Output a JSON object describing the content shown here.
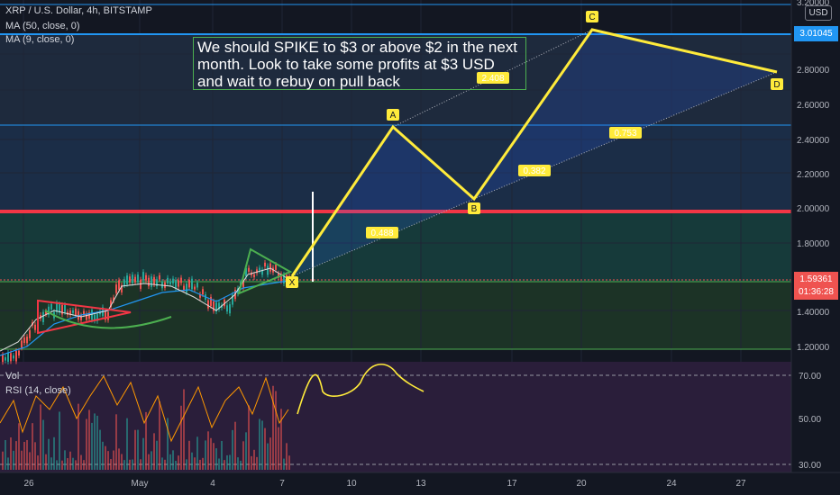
{
  "legend": {
    "symbol": "XRP / U.S. Dollar, 4h, BITSTAMP",
    "ma50": "MA (50, close, 0)",
    "ma9": "MA (9, close, 0)",
    "vol": "Vol",
    "rsi": "RSI (14, close)"
  },
  "currency_button": "USD",
  "annotation_text": "We should SPIKE to $3 or above $2 in the next month. Look to take some profits at $3 USD and wait to rebuy on pull back",
  "price_tags": {
    "resistance": "3.01045",
    "last_price": "1.59361",
    "countdown": "01:36:28"
  },
  "price_axis": [
    "3.20000",
    "2.80000",
    "2.60000",
    "2.40000",
    "2.20000",
    "2.00000",
    "1.80000",
    "1.40000",
    "1.20000"
  ],
  "rsi_axis": [
    "70.00",
    "50.00",
    "30.00"
  ],
  "time_axis": [
    "26",
    "May",
    "4",
    "7",
    "10",
    "13",
    "17",
    "20",
    "24",
    "27"
  ],
  "pattern": {
    "points": [
      "X",
      "A",
      "B",
      "C",
      "D"
    ],
    "ratios": [
      "0.488",
      "0.382",
      "2.408",
      "0.753"
    ]
  },
  "colors": {
    "background": "#131722",
    "pattern_line": "#ffeb3b",
    "support_red": "#f23645",
    "resistance_blue": "#2196f3",
    "bull_candle": "#26a69a",
    "bear_candle": "#ef5350",
    "rsi_pane": "#2a1e3a"
  },
  "chart_data": {
    "type": "candlestick",
    "title": "XRP / U.S. Dollar, 4h, BITSTAMP",
    "last_price": 1.59361,
    "horizontal_levels": [
      3.01045,
      2.48,
      1.98,
      1.6,
      1.19
    ],
    "harmonic_pattern": {
      "X": 1.6,
      "A": 2.47,
      "B": 2.06,
      "C": 3.01,
      "D": 2.79
    },
    "ylim": [
      1.1,
      3.2
    ]
  }
}
